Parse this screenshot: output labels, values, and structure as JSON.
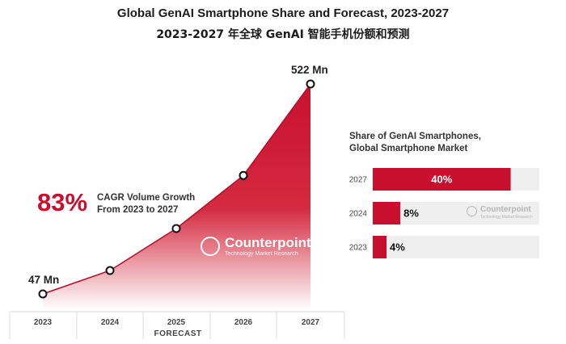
{
  "title": "Global GenAI Smartphone Share and Forecast, 2023-2027",
  "subtitle": "2023-2027 年全球 GenAI 智能手机份额和预测",
  "chart_data": [
    {
      "type": "area",
      "title": "Global GenAI Smartphone Volume",
      "x": [
        "2023",
        "2024",
        "2025",
        "2026",
        "2027"
      ],
      "values": [
        47,
        100,
        195,
        315,
        522
      ],
      "unit": "Mn",
      "point_labels": [
        {
          "category": "2023",
          "text": "47 Mn"
        },
        {
          "category": "2027",
          "text": "522 Mn"
        }
      ],
      "xlabel": "FORECAST",
      "ylim": [
        0,
        522
      ],
      "annotation": {
        "value": "83%",
        "line1": "CAGR Volume Growth",
        "line2": "From 2023 to 2027"
      },
      "color": "#c8102e"
    },
    {
      "type": "bar",
      "orientation": "horizontal",
      "title_line1": "Share of GenAI Smartphones,",
      "title_line2": "Global Smartphone Market",
      "categories": [
        "2027",
        "2024",
        "2023"
      ],
      "values": [
        40,
        8,
        4
      ],
      "labels": [
        "40%",
        "8%",
        "4%"
      ],
      "xlim": [
        0,
        100
      ],
      "bar_color": "#c8102e",
      "track_color": "#efefef"
    }
  ],
  "logo": {
    "name": "Counterpoint",
    "tagline": "Technology Market Research"
  }
}
